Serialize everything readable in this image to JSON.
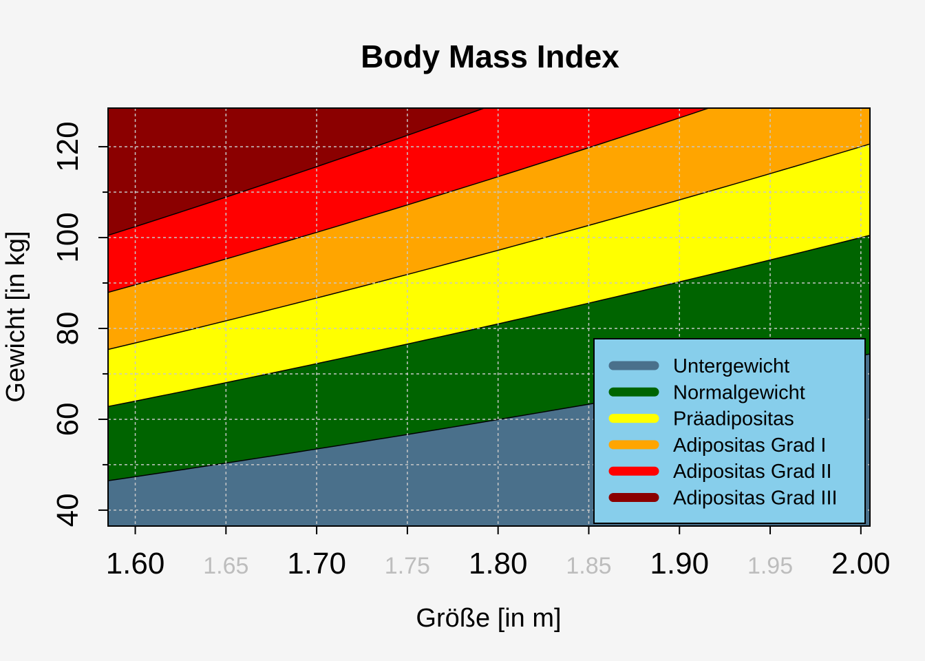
{
  "chart_data": {
    "type": "area",
    "title": "Body Mass Index",
    "xlabel": "Größe [in m]",
    "ylabel": "Gewicht [in kg]",
    "xlim": [
      1.585,
      2.005
    ],
    "ylim": [
      36.5,
      128.5
    ],
    "x_ticks_major": [
      "1.60",
      "1.70",
      "1.80",
      "1.90",
      "2.00"
    ],
    "x_ticks_minor": [
      "1.65",
      "1.75",
      "1.85",
      "1.95"
    ],
    "x_major_values": [
      1.6,
      1.7,
      1.8,
      1.9,
      2.0
    ],
    "x_minor_values": [
      1.65,
      1.75,
      1.85,
      1.95
    ],
    "y_ticks": [
      "40",
      "60",
      "80",
      "100",
      "120"
    ],
    "y_tick_values": [
      40,
      60,
      80,
      100,
      120
    ],
    "grid": true,
    "legend_position": "bottom-right",
    "series": [
      {
        "name": "Untergewicht",
        "bmi_from": 0,
        "bmi_to": 18.5,
        "color": "#4a708b"
      },
      {
        "name": "Normalgewicht",
        "bmi_from": 18.5,
        "bmi_to": 25,
        "color": "#006400"
      },
      {
        "name": "Präadipositas",
        "bmi_from": 25,
        "bmi_to": 30,
        "color": "#ffff00"
      },
      {
        "name": "Adipositas Grad I",
        "bmi_from": 30,
        "bmi_to": 35,
        "color": "#ffa500"
      },
      {
        "name": "Adipositas Grad II",
        "bmi_from": 35,
        "bmi_to": 40,
        "color": "#ff0000"
      },
      {
        "name": "Adipositas Grad III",
        "bmi_from": 40,
        "bmi_to": 100,
        "color": "#8b0000"
      }
    ],
    "legend_background": "#87ceeb",
    "background": "#f5f5f5"
  }
}
